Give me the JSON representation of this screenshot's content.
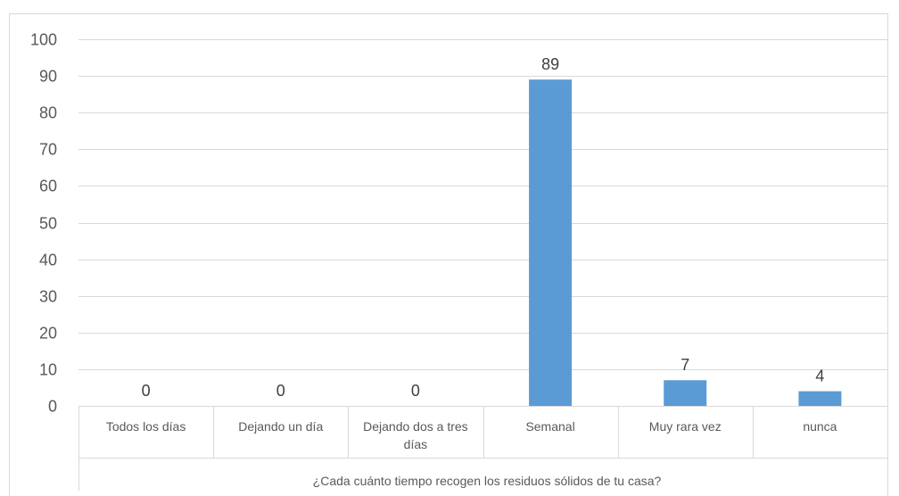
{
  "chart_data": {
    "type": "bar",
    "categories": [
      "Todos los días",
      "Dejando un día",
      "Dejando dos a tres días",
      "Semanal",
      "Muy rara vez",
      "nunca"
    ],
    "values": [
      0,
      0,
      0,
      89,
      7,
      4
    ],
    "data_labels": [
      "0",
      "0",
      "0",
      "89",
      "7",
      "4"
    ],
    "title": "",
    "xlabel": "¿Cada cuánto tiempo recogen los residuos sólidos de tu casa?",
    "ylabel": "",
    "ylim": [
      0,
      100
    ],
    "yticks": [
      0,
      10,
      20,
      30,
      40,
      50,
      60,
      70,
      80,
      90,
      100
    ],
    "grid": true,
    "legend": "none",
    "bar_color": "#5B9BD5",
    "grid_color": "#D9D9D9",
    "frame_color": "#D9D9D9",
    "text_color": "#595959"
  }
}
